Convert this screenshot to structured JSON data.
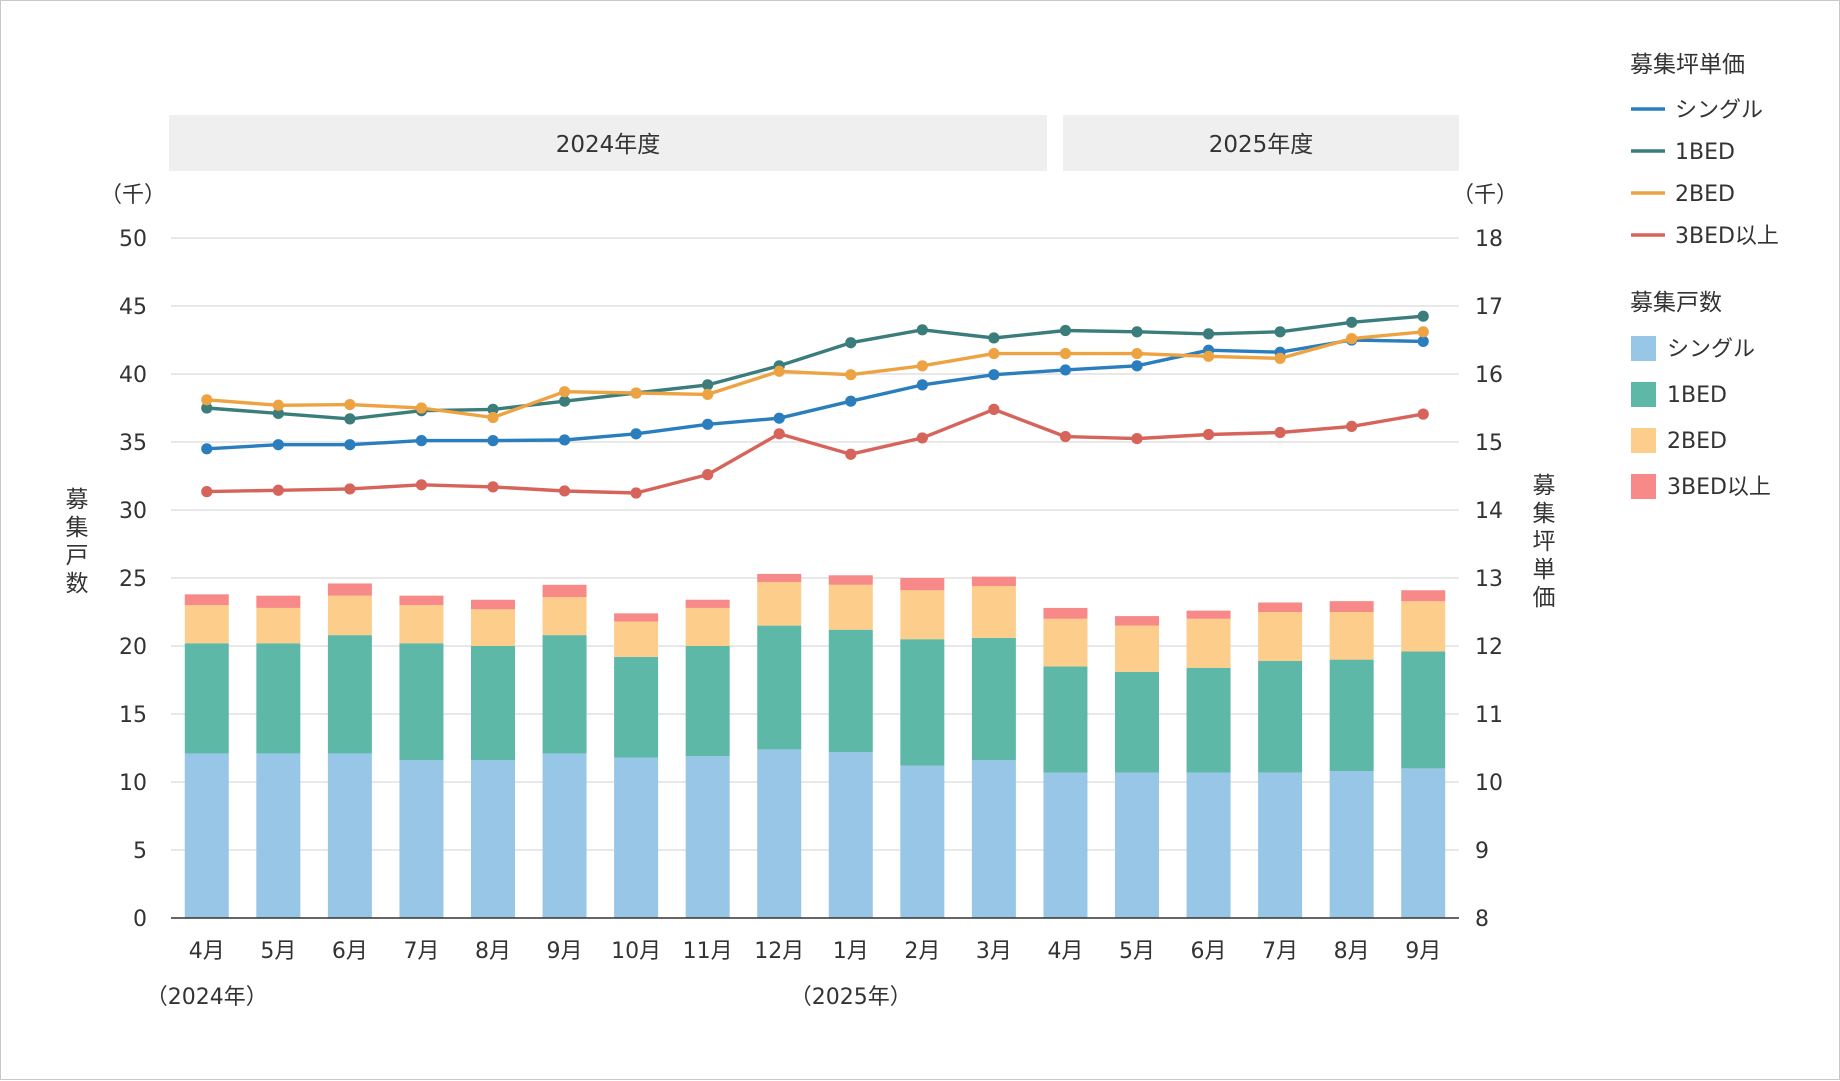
{
  "chart_data": {
    "type": "bar+line",
    "fiscal_years": [
      "2024年度",
      "2025年度"
    ],
    "categories": [
      "4月",
      "5月",
      "6月",
      "7月",
      "8月",
      "9月",
      "10月",
      "11月",
      "12月",
      "1月",
      "2月",
      "3月",
      "4月",
      "5月",
      "6月",
      "7月",
      "8月",
      "9月"
    ],
    "year_labels": [
      {
        "index": 0,
        "text": "（2024年）"
      },
      {
        "index": 9,
        "text": "（2025年）"
      }
    ],
    "left_axis": {
      "title": "募集戸数",
      "unit": "（千）",
      "range": [
        0,
        50
      ],
      "ticks": [
        "0",
        "5",
        "10",
        "15",
        "20",
        "25",
        "30",
        "35",
        "40",
        "45",
        "50"
      ]
    },
    "right_axis": {
      "title": "募集坪単価",
      "unit": "（千）",
      "range": [
        8,
        18
      ],
      "ticks": [
        "8",
        "9",
        "10",
        "11",
        "12",
        "13",
        "14",
        "15",
        "16",
        "17",
        "18"
      ]
    },
    "bar_series": [
      {
        "name": "シングル",
        "color": "#97c6e6",
        "values": [
          12.1,
          12.1,
          12.1,
          11.6,
          11.6,
          12.1,
          11.8,
          11.9,
          12.4,
          12.2,
          11.2,
          11.6,
          10.7,
          10.7,
          10.7,
          10.7,
          10.8,
          11.0
        ]
      },
      {
        "name": "1BED",
        "color": "#5eb8a8",
        "values": [
          8.1,
          8.1,
          8.7,
          8.6,
          8.4,
          8.7,
          7.4,
          8.1,
          9.1,
          9.0,
          9.3,
          9.0,
          7.8,
          7.4,
          7.7,
          8.2,
          8.2,
          8.6
        ]
      },
      {
        "name": "2BED",
        "color": "#fdcd8b",
        "values": [
          2.8,
          2.6,
          2.9,
          2.8,
          2.7,
          2.8,
          2.6,
          2.8,
          3.2,
          3.3,
          3.6,
          3.8,
          3.5,
          3.4,
          3.6,
          3.6,
          3.5,
          3.7
        ]
      },
      {
        "name": "3BED以上",
        "color": "#f78a88",
        "values": [
          0.8,
          0.9,
          0.9,
          0.7,
          0.7,
          0.9,
          0.6,
          0.6,
          0.6,
          0.7,
          0.9,
          0.7,
          0.8,
          0.7,
          0.6,
          0.7,
          0.8,
          0.8
        ]
      }
    ],
    "line_series": [
      {
        "name": "シングル",
        "color": "#2a7ebe",
        "values": [
          14.9,
          14.96,
          14.96,
          15.02,
          15.02,
          15.03,
          15.12,
          15.26,
          15.35,
          15.6,
          15.84,
          15.99,
          16.06,
          16.12,
          16.35,
          16.32,
          16.5,
          16.48
        ]
      },
      {
        "name": "1BED",
        "color": "#3a7d7b",
        "values": [
          15.5,
          15.42,
          15.34,
          15.46,
          15.48,
          15.6,
          15.72,
          15.84,
          16.12,
          16.46,
          16.65,
          16.53,
          16.64,
          16.62,
          16.59,
          16.62,
          16.76,
          16.85
        ]
      },
      {
        "name": "2BED",
        "color": "#eea343",
        "values": [
          15.62,
          15.54,
          15.55,
          15.5,
          15.36,
          15.74,
          15.72,
          15.7,
          16.04,
          15.99,
          16.12,
          16.3,
          16.3,
          16.3,
          16.26,
          16.23,
          16.52,
          16.62
        ]
      },
      {
        "name": "3BED以上",
        "color": "#d6645a",
        "values": [
          14.27,
          14.29,
          14.31,
          14.37,
          14.34,
          14.28,
          14.25,
          14.52,
          15.12,
          14.82,
          15.06,
          15.48,
          15.08,
          15.05,
          15.11,
          15.14,
          15.23,
          15.41
        ]
      }
    ],
    "legend": {
      "position": "right",
      "line_title": "募集坪単価",
      "bar_title": "募集戸数",
      "line_items": [
        "シングル",
        "1BED",
        "2BED",
        "3BED以上"
      ],
      "bar_items": [
        "シングル",
        "1BED",
        "2BED",
        "3BED以上"
      ]
    },
    "grid": true
  }
}
